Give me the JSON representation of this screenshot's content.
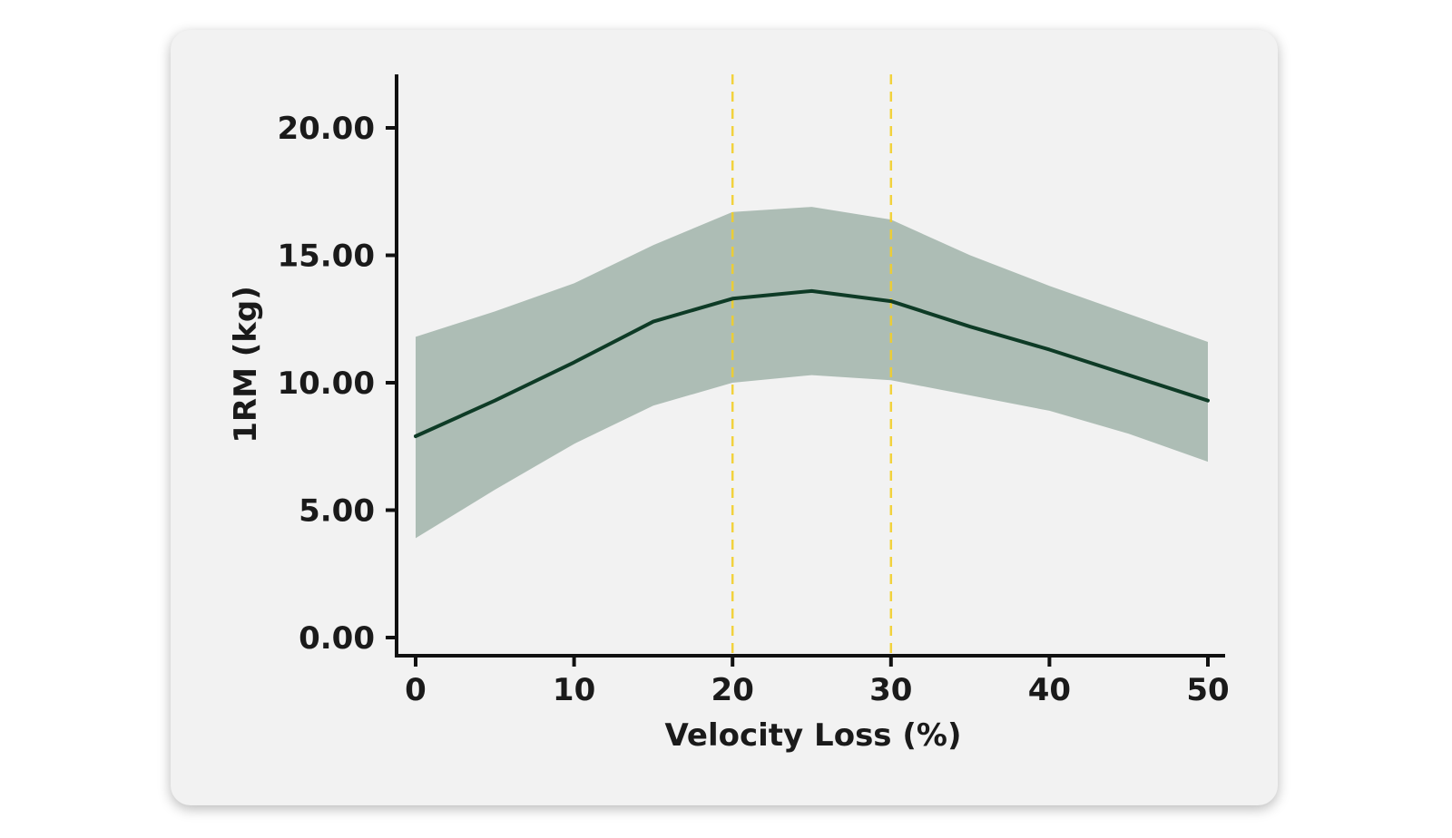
{
  "chart_data": {
    "type": "line",
    "xlabel": "Velocity Loss (%)",
    "ylabel": "1RM (kg)",
    "xlim": [
      0,
      50
    ],
    "ylim": [
      0,
      22
    ],
    "xticks": [
      0,
      10,
      20,
      30,
      40,
      50
    ],
    "xtick_labels": [
      "0",
      "10",
      "20",
      "30",
      "40",
      "50"
    ],
    "yticks": [
      0,
      5,
      10,
      15,
      20
    ],
    "ytick_labels": [
      "0.00",
      "5.00",
      "10.00",
      "15.00",
      "20.00"
    ],
    "grid": false,
    "series": [
      {
        "x": [
          0,
          5,
          10,
          15,
          20,
          25,
          30,
          35,
          40,
          45,
          50
        ],
        "values": [
          7.9,
          9.3,
          10.8,
          12.4,
          13.3,
          13.6,
          13.2,
          12.2,
          11.3,
          10.3,
          9.3
        ],
        "lower": [
          3.9,
          5.8,
          7.6,
          9.1,
          10.0,
          10.3,
          10.1,
          9.5,
          8.9,
          8.0,
          6.9
        ],
        "upper": [
          11.8,
          12.8,
          13.9,
          15.4,
          16.7,
          16.9,
          16.4,
          15.0,
          13.8,
          12.7,
          11.6
        ]
      }
    ],
    "reference_lines": [
      {
        "axis": "x",
        "value": 20,
        "style": "dashed"
      },
      {
        "axis": "x",
        "value": 30,
        "style": "dashed"
      }
    ],
    "colors": {
      "line": "#0e3b26",
      "band": "#adbdb5",
      "reference": "#f2cf2a",
      "axis": "#111111"
    }
  }
}
